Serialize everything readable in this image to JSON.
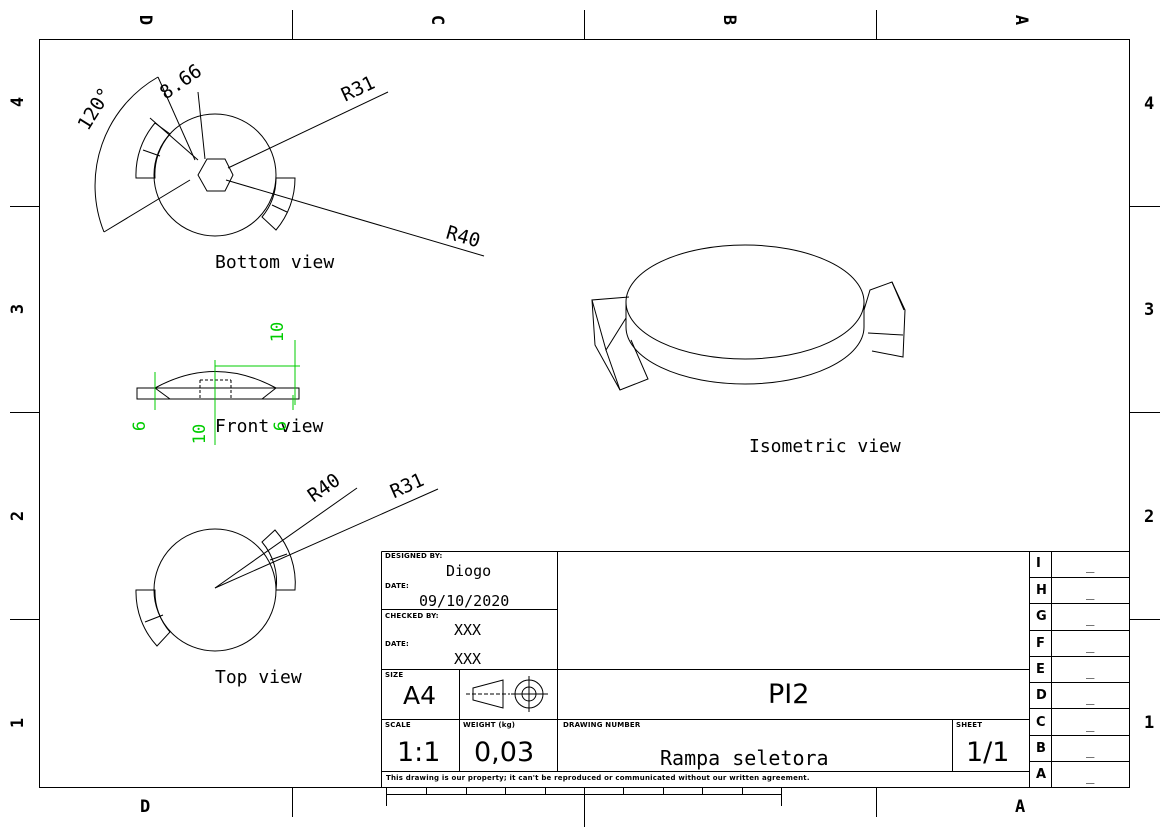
{
  "zones": {
    "columns_top": [
      "D",
      "C",
      "B",
      "A"
    ],
    "columns_bottom": [
      "D",
      "A"
    ],
    "rows": [
      "4",
      "3",
      "2",
      "1"
    ]
  },
  "views": {
    "bottom": "Bottom view",
    "front": "Front view",
    "top": "Top view",
    "isometric": "Isometric view"
  },
  "dimensions": {
    "angle": "120°",
    "hex": "8.66",
    "bottom_r31": "R31",
    "bottom_r40": "R40",
    "top_r40": "R40",
    "top_r31": "R31",
    "front_height_top": "10",
    "front_left_6": "6",
    "front_mid_10": "10",
    "front_right_6": "6"
  },
  "title_block": {
    "designed_by_label": "DESIGNED BY:",
    "designed_by": "Diogo",
    "date_label": "DATE:",
    "date": "09/10/2020",
    "checked_by_label": "CHECKED BY:",
    "checked_by": "XXX",
    "date2_label": "DATE:",
    "date2": "XXX",
    "size_label": "SIZE",
    "size": "A4",
    "title": "PI2",
    "scale_label": "SCALE",
    "scale": "1:1",
    "weight_label": "WEIGHT (kg)",
    "weight": "0,03",
    "drawing_number_label": "DRAWING NUMBER",
    "drawing_number": "Rampa seletora",
    "sheet_label": "SHEET",
    "sheet": "1/1",
    "disclaimer": "This drawing is our property; it can't be reproduced or communicated without our written agreement."
  },
  "revisions": [
    {
      "letter": "I",
      "value": "_"
    },
    {
      "letter": "H",
      "value": "_"
    },
    {
      "letter": "G",
      "value": "_"
    },
    {
      "letter": "F",
      "value": "_"
    },
    {
      "letter": "E",
      "value": "_"
    },
    {
      "letter": "D",
      "value": "_"
    },
    {
      "letter": "C",
      "value": "_"
    },
    {
      "letter": "B",
      "value": "_"
    },
    {
      "letter": "A",
      "value": "_"
    }
  ],
  "colors": {
    "line": "#000000",
    "dimension_green": "#00cc00",
    "background": "#ffffff"
  }
}
